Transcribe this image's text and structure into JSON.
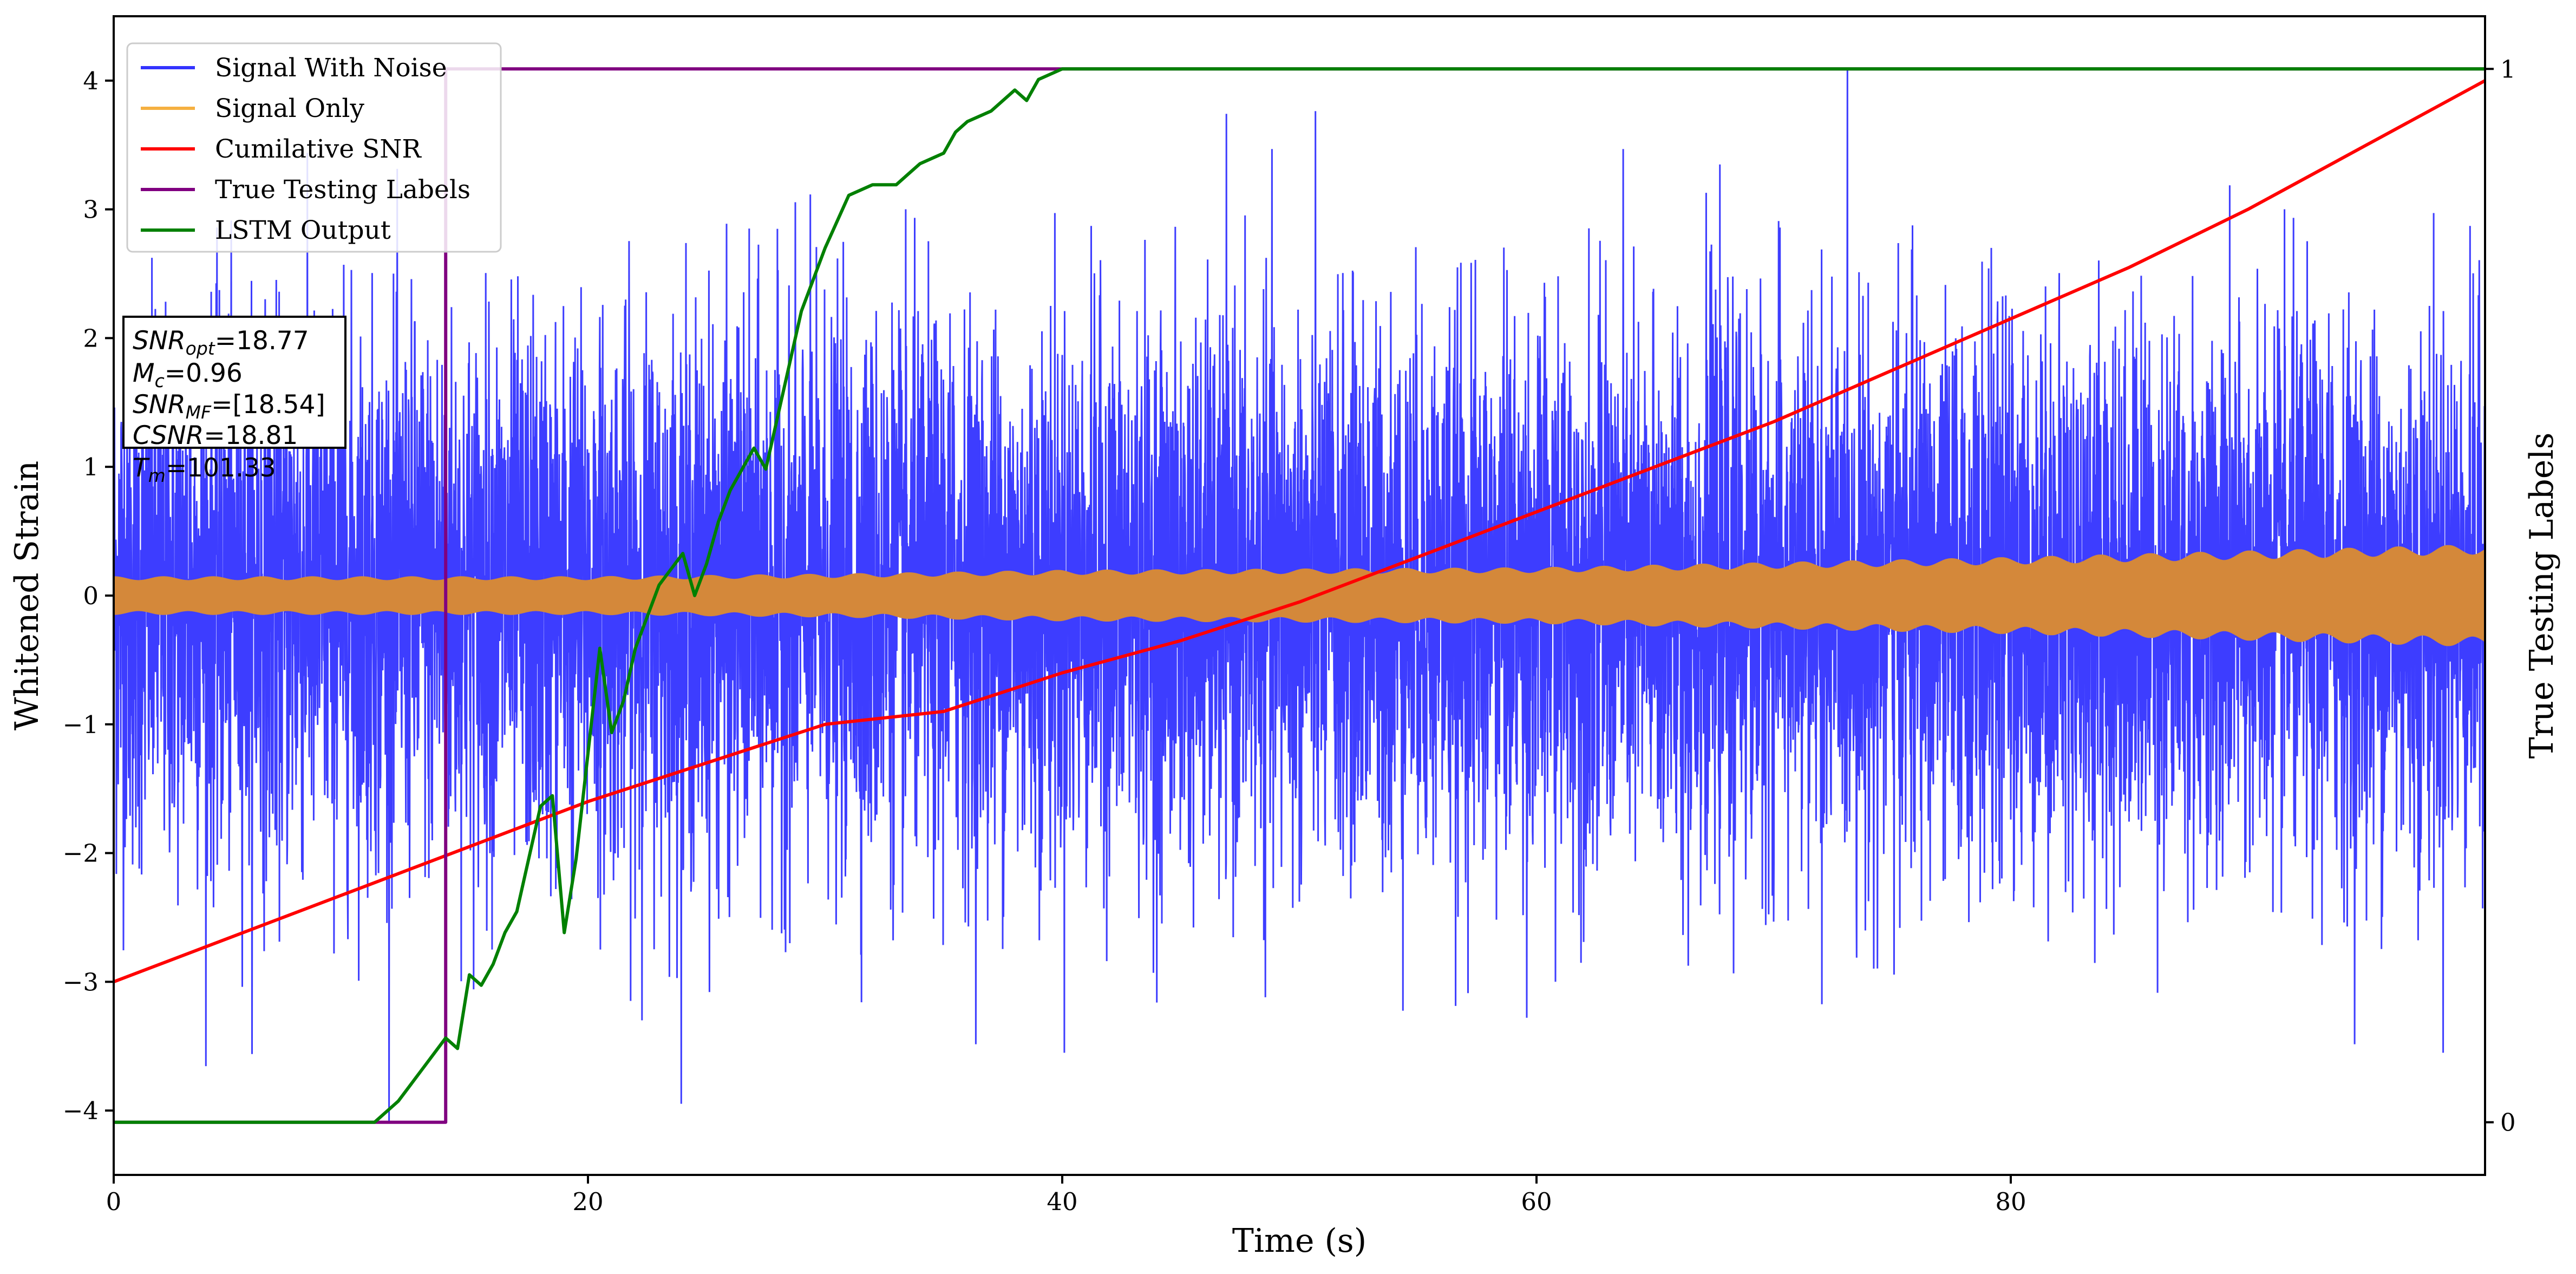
{
  "chart_data": {
    "type": "line",
    "xlabel": "Time (s)",
    "ylabel": "Whitened Strain",
    "ylabel_right": "True Testing Labels",
    "xlim": [
      0,
      100
    ],
    "ylim": [
      -4.5,
      4.5
    ],
    "ylim_right": [
      -0.05,
      1.05
    ],
    "x_ticks": [
      0,
      20,
      40,
      60,
      80
    ],
    "y_ticks": [
      -4,
      -3,
      -2,
      -1,
      0,
      1,
      2,
      3,
      4
    ],
    "y_ticks_right": [
      0,
      1
    ],
    "grid": false,
    "legend_position": "top-left",
    "legend": [
      {
        "name": "Signal With Noise",
        "color": "#3333ff"
      },
      {
        "name": "Signal Only",
        "color": "#f5b041"
      },
      {
        "name": "Cumilative SNR",
        "color": "#ff0000"
      },
      {
        "name": "True Testing Labels",
        "color": "#800080"
      },
      {
        "name": "LSTM Output",
        "color": "#008000"
      }
    ],
    "annotation": {
      "snr_opt_base": "SNR",
      "snr_opt_sub": "opt",
      "snr_opt_val": "=18.77",
      "mc_base": "M",
      "mc_sub": "c",
      "mc_val": "=0.96",
      "snr_mf_base": "SNR",
      "snr_mf_sub": "MF",
      "snr_mf_val": "=[18.54]",
      "csnr_base": "CSNR",
      "csnr_val": "=18.81",
      "tm_base": "T",
      "tm_sub": "m",
      "tm_val": "=101.33"
    },
    "series": [
      {
        "name": "Signal With Noise",
        "axis": "left",
        "style": "dense noise oscillating roughly between -4.1 and 4.1 over 0-100 s",
        "envelope_max": 4.1,
        "envelope_min": -4.1
      },
      {
        "name": "Signal Only",
        "axis": "left",
        "style": "dense oscillation; amplitude grows from about 0.15 to 0.4",
        "amplitude": [
          [
            0,
            0.15
          ],
          [
            20,
            0.15
          ],
          [
            30,
            0.17
          ],
          [
            40,
            0.2
          ],
          [
            60,
            0.22
          ],
          [
            80,
            0.3
          ],
          [
            100,
            0.4
          ]
        ]
      },
      {
        "name": "Cumilative SNR",
        "axis": "left",
        "x": [
          0,
          5,
          10,
          15,
          20,
          25,
          30,
          35,
          40,
          45,
          50,
          55,
          60,
          65,
          70,
          75,
          80,
          85,
          90,
          95,
          100
        ],
        "y": [
          -3.0,
          -2.65,
          -2.3,
          -1.95,
          -1.6,
          -1.3,
          -1.0,
          -0.9,
          -0.6,
          -0.35,
          -0.05,
          0.3,
          0.65,
          1.0,
          1.35,
          1.75,
          2.15,
          2.55,
          3.0,
          3.5,
          4.0
        ]
      },
      {
        "name": "True Testing Labels",
        "axis": "right",
        "x": [
          0,
          14,
          14,
          100
        ],
        "y": [
          0,
          0,
          1,
          1
        ]
      },
      {
        "name": "LSTM Output",
        "axis": "right",
        "x": [
          0,
          11,
          12,
          13,
          14,
          14.5,
          15,
          15.5,
          16,
          16.5,
          17,
          18,
          18.5,
          19,
          19.5,
          20,
          20.5,
          21,
          21.5,
          22,
          23,
          24,
          24.5,
          25,
          25.5,
          26,
          27,
          27.5,
          28,
          29,
          29.5,
          30,
          31,
          32,
          33,
          33.5,
          34,
          35,
          35.5,
          36,
          37,
          38,
          38.5,
          39,
          40,
          42,
          44,
          46,
          48,
          100
        ],
        "y": [
          0,
          0,
          0.02,
          0.05,
          0.08,
          0.07,
          0.14,
          0.13,
          0.15,
          0.18,
          0.2,
          0.3,
          0.31,
          0.18,
          0.25,
          0.35,
          0.45,
          0.37,
          0.4,
          0.45,
          0.51,
          0.54,
          0.5,
          0.53,
          0.57,
          0.6,
          0.64,
          0.62,
          0.67,
          0.77,
          0.8,
          0.83,
          0.88,
          0.89,
          0.89,
          0.9,
          0.91,
          0.92,
          0.94,
          0.95,
          0.96,
          0.98,
          0.97,
          0.99,
          1.0,
          1.0,
          1.0,
          1.0,
          1.0,
          1.0
        ]
      }
    ]
  }
}
